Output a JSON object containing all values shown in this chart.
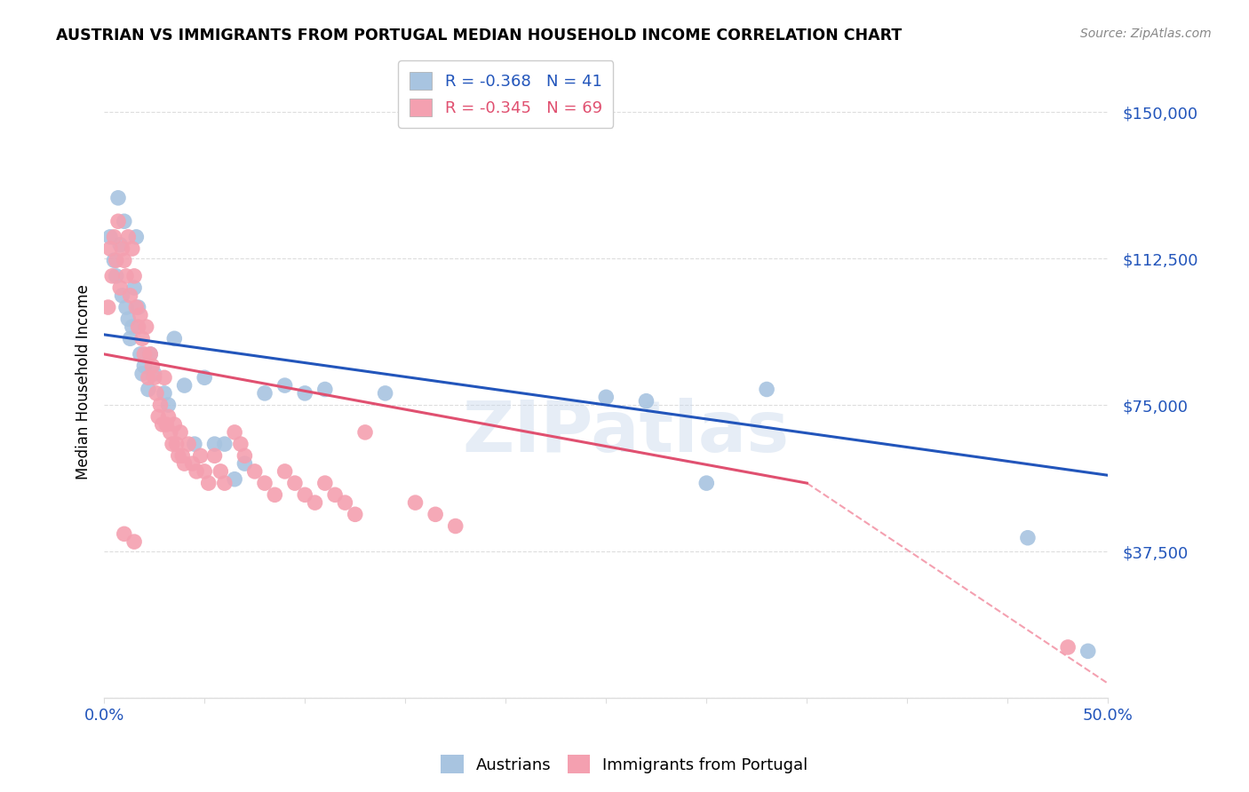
{
  "title": "AUSTRIAN VS IMMIGRANTS FROM PORTUGAL MEDIAN HOUSEHOLD INCOME CORRELATION CHART",
  "source": "Source: ZipAtlas.com",
  "ylabel": "Median Household Income",
  "yticks": [
    0,
    37500,
    75000,
    112500,
    150000
  ],
  "ytick_labels": [
    "",
    "$37,500",
    "$75,000",
    "$112,500",
    "$150,000"
  ],
  "xlim": [
    0.0,
    0.5
  ],
  "ylim": [
    0,
    162000
  ],
  "watermark": "ZIPatlas",
  "legend_blue_R": "R = -0.368",
  "legend_blue_N": "N = 41",
  "legend_pink_R": "R = -0.345",
  "legend_pink_N": "N = 69",
  "blue_color": "#a8c4e0",
  "pink_color": "#f4a0b0",
  "blue_line_color": "#2255bb",
  "pink_line_color": "#e05070",
  "dashed_line_color": "#f4a0b0",
  "blue_scatter": [
    [
      0.003,
      118000
    ],
    [
      0.005,
      112000
    ],
    [
      0.006,
      108000
    ],
    [
      0.007,
      128000
    ],
    [
      0.008,
      116000
    ],
    [
      0.009,
      103000
    ],
    [
      0.01,
      122000
    ],
    [
      0.011,
      100000
    ],
    [
      0.012,
      97000
    ],
    [
      0.013,
      92000
    ],
    [
      0.014,
      95000
    ],
    [
      0.015,
      105000
    ],
    [
      0.016,
      118000
    ],
    [
      0.017,
      100000
    ],
    [
      0.018,
      88000
    ],
    [
      0.019,
      83000
    ],
    [
      0.02,
      85000
    ],
    [
      0.022,
      79000
    ],
    [
      0.023,
      88000
    ],
    [
      0.025,
      83000
    ],
    [
      0.03,
      78000
    ],
    [
      0.032,
      75000
    ],
    [
      0.035,
      92000
    ],
    [
      0.04,
      80000
    ],
    [
      0.045,
      65000
    ],
    [
      0.05,
      82000
    ],
    [
      0.055,
      65000
    ],
    [
      0.06,
      65000
    ],
    [
      0.065,
      56000
    ],
    [
      0.07,
      60000
    ],
    [
      0.08,
      78000
    ],
    [
      0.09,
      80000
    ],
    [
      0.1,
      78000
    ],
    [
      0.11,
      79000
    ],
    [
      0.14,
      78000
    ],
    [
      0.25,
      77000
    ],
    [
      0.27,
      76000
    ],
    [
      0.3,
      55000
    ],
    [
      0.33,
      79000
    ],
    [
      0.46,
      41000
    ],
    [
      0.49,
      12000
    ]
  ],
  "pink_scatter": [
    [
      0.002,
      100000
    ],
    [
      0.003,
      115000
    ],
    [
      0.004,
      108000
    ],
    [
      0.005,
      118000
    ],
    [
      0.006,
      112000
    ],
    [
      0.007,
      122000
    ],
    [
      0.008,
      105000
    ],
    [
      0.009,
      115000
    ],
    [
      0.01,
      112000
    ],
    [
      0.011,
      108000
    ],
    [
      0.012,
      118000
    ],
    [
      0.013,
      103000
    ],
    [
      0.014,
      115000
    ],
    [
      0.015,
      108000
    ],
    [
      0.016,
      100000
    ],
    [
      0.017,
      95000
    ],
    [
      0.018,
      98000
    ],
    [
      0.019,
      92000
    ],
    [
      0.02,
      88000
    ],
    [
      0.021,
      95000
    ],
    [
      0.022,
      82000
    ],
    [
      0.023,
      88000
    ],
    [
      0.024,
      85000
    ],
    [
      0.025,
      82000
    ],
    [
      0.026,
      78000
    ],
    [
      0.027,
      72000
    ],
    [
      0.028,
      75000
    ],
    [
      0.029,
      70000
    ],
    [
      0.03,
      82000
    ],
    [
      0.031,
      70000
    ],
    [
      0.032,
      72000
    ],
    [
      0.033,
      68000
    ],
    [
      0.034,
      65000
    ],
    [
      0.035,
      70000
    ],
    [
      0.036,
      65000
    ],
    [
      0.037,
      62000
    ],
    [
      0.038,
      68000
    ],
    [
      0.039,
      62000
    ],
    [
      0.04,
      60000
    ],
    [
      0.042,
      65000
    ],
    [
      0.044,
      60000
    ],
    [
      0.046,
      58000
    ],
    [
      0.048,
      62000
    ],
    [
      0.05,
      58000
    ],
    [
      0.052,
      55000
    ],
    [
      0.055,
      62000
    ],
    [
      0.058,
      58000
    ],
    [
      0.06,
      55000
    ],
    [
      0.065,
      68000
    ],
    [
      0.068,
      65000
    ],
    [
      0.07,
      62000
    ],
    [
      0.075,
      58000
    ],
    [
      0.08,
      55000
    ],
    [
      0.085,
      52000
    ],
    [
      0.09,
      58000
    ],
    [
      0.095,
      55000
    ],
    [
      0.1,
      52000
    ],
    [
      0.105,
      50000
    ],
    [
      0.11,
      55000
    ],
    [
      0.115,
      52000
    ],
    [
      0.12,
      50000
    ],
    [
      0.125,
      47000
    ],
    [
      0.13,
      68000
    ],
    [
      0.155,
      50000
    ],
    [
      0.165,
      47000
    ],
    [
      0.175,
      44000
    ],
    [
      0.01,
      42000
    ],
    [
      0.015,
      40000
    ],
    [
      0.48,
      13000
    ]
  ],
  "blue_line_x": [
    0.0,
    0.5
  ],
  "blue_line_y": [
    93000,
    57000
  ],
  "pink_line_x": [
    0.0,
    0.35
  ],
  "pink_line_y": [
    88000,
    55000
  ],
  "dashed_line_x": [
    0.35,
    0.505
  ],
  "dashed_line_y": [
    55000,
    2000
  ],
  "background_color": "#ffffff",
  "grid_color": "#dddddd"
}
